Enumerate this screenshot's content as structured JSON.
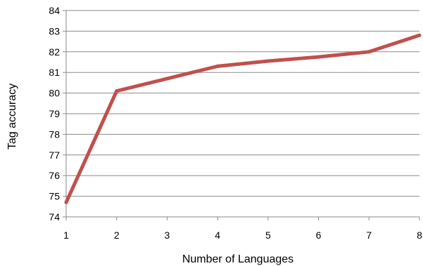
{
  "chart_data": {
    "type": "line",
    "title": "",
    "xlabel": "Number of Languages",
    "ylabel": "Tag accuracy",
    "x": [
      1,
      2,
      3,
      4,
      5,
      6,
      7,
      8
    ],
    "x_tick_labels": [
      "1",
      "2",
      "3",
      "4",
      "5",
      "6",
      "7",
      "8"
    ],
    "xlim": [
      1,
      8
    ],
    "ylim": [
      74,
      84
    ],
    "y_ticks": [
      74,
      75,
      76,
      77,
      78,
      79,
      80,
      81,
      82,
      83,
      84
    ],
    "y_tick_labels": [
      "74",
      "75",
      "76",
      "77",
      "78",
      "79",
      "80",
      "81",
      "82",
      "83",
      "84"
    ],
    "grid": "horizontal",
    "legend": "none",
    "series": [
      {
        "values": [
          74.7,
          80.1,
          80.7,
          81.3,
          81.55,
          81.75,
          82.0,
          82.8
        ],
        "color": "#c0504d"
      }
    ]
  }
}
